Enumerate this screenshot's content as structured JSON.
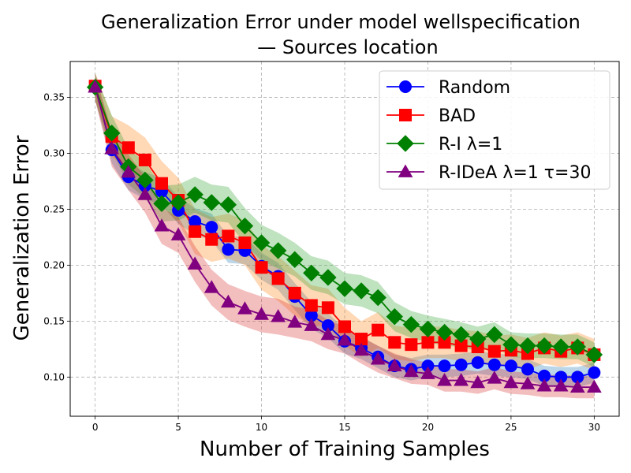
{
  "chart_data": {
    "type": "line",
    "title_line1": "Generalization Error under model wellspecification",
    "title_line2": "— Sources location",
    "xlabel": "Number of Training Samples",
    "ylabel": "Generalization Error",
    "xlim": [
      -1.5,
      31.5
    ],
    "ylim": [
      0.065,
      0.382
    ],
    "xticks": [
      0,
      5,
      10,
      15,
      20,
      25,
      30
    ],
    "yticks": [
      0.1,
      0.15,
      0.2,
      0.25,
      0.3,
      0.35
    ],
    "ytick_labels": [
      "0.10",
      "0.15",
      "0.20",
      "0.25",
      "0.30",
      "0.35"
    ],
    "grid": true,
    "legend_position": "top-right",
    "x": [
      0,
      1,
      2,
      3,
      4,
      5,
      6,
      7,
      8,
      9,
      10,
      11,
      12,
      13,
      14,
      15,
      16,
      17,
      18,
      19,
      20,
      21,
      22,
      23,
      24,
      25,
      26,
      27,
      28,
      29,
      30
    ],
    "series": [
      {
        "name": "Random",
        "color": "#0000ff",
        "band_color": "#1f77b4",
        "marker": "circle",
        "values": [
          0.36,
          0.303,
          0.279,
          0.271,
          0.266,
          0.249,
          0.239,
          0.234,
          0.214,
          0.213,
          0.199,
          0.19,
          0.172,
          0.155,
          0.146,
          0.132,
          0.126,
          0.118,
          0.11,
          0.107,
          0.11,
          0.11,
          0.111,
          0.113,
          0.111,
          0.11,
          0.107,
          0.101,
          0.1,
          0.1,
          0.104
        ],
        "band": [
          0.012,
          0.012,
          0.012,
          0.012,
          0.012,
          0.012,
          0.012,
          0.012,
          0.012,
          0.012,
          0.012,
          0.012,
          0.012,
          0.012,
          0.011,
          0.011,
          0.01,
          0.01,
          0.01,
          0.01,
          0.01,
          0.01,
          0.01,
          0.01,
          0.01,
          0.01,
          0.009,
          0.009,
          0.009,
          0.009,
          0.009
        ]
      },
      {
        "name": "BAD",
        "color": "#ff0000",
        "band_color": "#ff7f0e",
        "marker": "square",
        "values": [
          0.36,
          0.315,
          0.305,
          0.294,
          0.273,
          0.258,
          0.23,
          0.223,
          0.226,
          0.22,
          0.198,
          0.188,
          0.175,
          0.164,
          0.162,
          0.145,
          0.134,
          0.142,
          0.131,
          0.129,
          0.131,
          0.131,
          0.128,
          0.127,
          0.123,
          0.124,
          0.121,
          0.126,
          0.123,
          0.126,
          0.12
        ],
        "band": [
          0.012,
          0.018,
          0.02,
          0.02,
          0.02,
          0.02,
          0.02,
          0.02,
          0.02,
          0.02,
          0.02,
          0.02,
          0.02,
          0.018,
          0.017,
          0.017,
          0.016,
          0.016,
          0.015,
          0.015,
          0.014,
          0.014,
          0.014,
          0.014,
          0.014,
          0.014,
          0.014,
          0.014,
          0.014,
          0.014,
          0.014
        ]
      },
      {
        "name": "R-I λ=1",
        "color": "#008000",
        "band_color": "#2ca02c",
        "marker": "diamond",
        "values": [
          0.359,
          0.318,
          0.288,
          0.276,
          0.255,
          0.256,
          0.263,
          0.256,
          0.254,
          0.235,
          0.22,
          0.213,
          0.205,
          0.193,
          0.189,
          0.179,
          0.177,
          0.171,
          0.154,
          0.147,
          0.143,
          0.14,
          0.138,
          0.134,
          0.138,
          0.129,
          0.128,
          0.128,
          0.127,
          0.127,
          0.12
        ],
        "band": [
          0.012,
          0.016,
          0.016,
          0.016,
          0.016,
          0.016,
          0.016,
          0.016,
          0.016,
          0.016,
          0.016,
          0.016,
          0.015,
          0.015,
          0.015,
          0.014,
          0.014,
          0.014,
          0.013,
          0.012,
          0.012,
          0.012,
          0.011,
          0.011,
          0.011,
          0.011,
          0.011,
          0.011,
          0.011,
          0.011,
          0.011
        ]
      },
      {
        "name": "R-IDeA λ=1 τ=30",
        "color": "#800080",
        "band_color": "#d62728",
        "marker": "triangle",
        "values": [
          0.359,
          0.304,
          0.283,
          0.263,
          0.235,
          0.227,
          0.201,
          0.18,
          0.167,
          0.161,
          0.156,
          0.154,
          0.149,
          0.146,
          0.138,
          0.133,
          0.124,
          0.116,
          0.11,
          0.105,
          0.103,
          0.097,
          0.097,
          0.095,
          0.099,
          0.095,
          0.094,
          0.092,
          0.092,
          0.091,
          0.091
        ],
        "band": [
          0.012,
          0.016,
          0.016,
          0.016,
          0.016,
          0.016,
          0.016,
          0.016,
          0.016,
          0.016,
          0.016,
          0.016,
          0.014,
          0.014,
          0.013,
          0.012,
          0.012,
          0.012,
          0.011,
          0.011,
          0.01,
          0.01,
          0.01,
          0.01,
          0.01,
          0.01,
          0.01,
          0.01,
          0.01,
          0.01,
          0.01
        ]
      }
    ]
  }
}
